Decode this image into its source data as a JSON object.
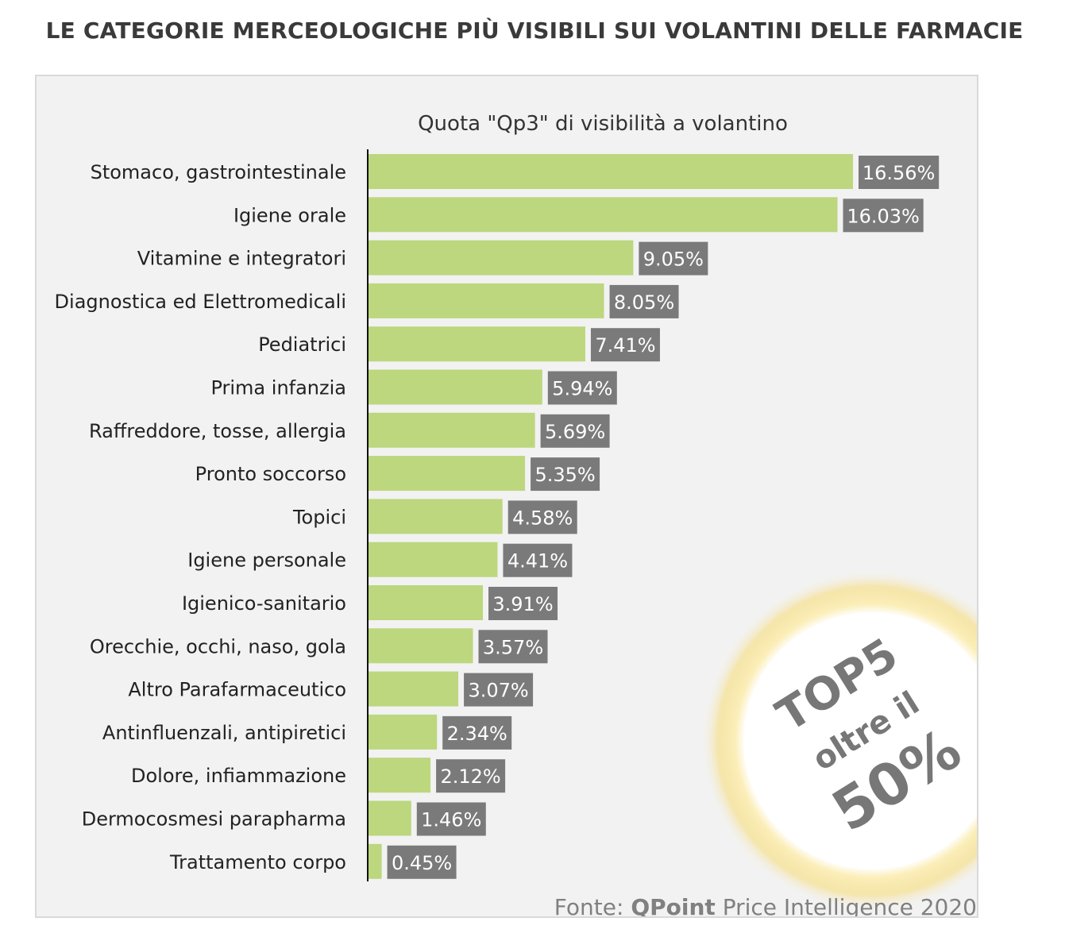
{
  "page": {
    "title": "LE CATEGORIE MERCEOLOGICHE PIÙ VISIBILI SUI VOLANTINI DELLE FARMACIE"
  },
  "chart_data": {
    "type": "bar",
    "orientation": "horizontal",
    "title": "Quota \"Qp3\" di visibilità a volantino",
    "categories": [
      "Stomaco, gastrointestinale",
      "Igiene orale",
      "Vitamine e integratori",
      "Diagnostica ed Elettromedicali",
      "Pediatrici",
      "Prima infanzia",
      "Raffreddore, tosse, allergia",
      "Pronto soccorso",
      "Topici",
      "Igiene personale",
      "Igienico-sanitario",
      "Orecchie, occhi, naso, gola",
      "Altro Parafarmaceutico",
      "Antinfluenzali, antipiretici",
      "Dolore, infiammazione",
      "Dermocosmesi parapharma",
      "Trattamento corpo"
    ],
    "values": [
      16.56,
      16.03,
      9.05,
      8.05,
      7.41,
      5.94,
      5.69,
      5.35,
      4.58,
      4.41,
      3.91,
      3.57,
      3.07,
      2.34,
      2.12,
      1.46,
      0.45
    ],
    "value_labels": [
      "16.56%",
      "16.03%",
      "9.05%",
      "8.05%",
      "7.41%",
      "5.94%",
      "5.69%",
      "5.35%",
      "4.58%",
      "4.41%",
      "3.91%",
      "3.57%",
      "3.07%",
      "2.34%",
      "2.12%",
      "1.46%",
      "0.45%"
    ],
    "xlim": [
      0,
      17
    ],
    "grid": false,
    "colors": {
      "bar": "#bcd77e",
      "label_bg": "#7a7a7a",
      "label_text": "#ffffff",
      "axis": "#111111"
    },
    "badge": {
      "line1": "TOP5",
      "line2": "oltre il",
      "line3": "50%"
    },
    "source": {
      "prefix": "Fonte: ",
      "brand": "QPoint",
      "suffix": " Price Intelligence 2020"
    }
  }
}
